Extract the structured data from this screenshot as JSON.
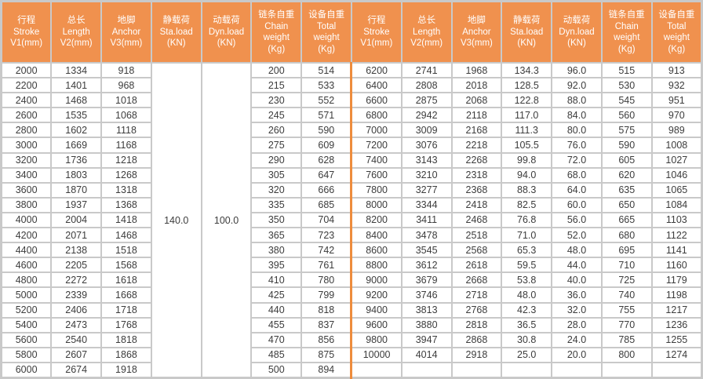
{
  "table": {
    "columns": [
      {
        "label": "行程\nStroke\nV1(mm)"
      },
      {
        "label": "总长\nLength\nV2(mm)"
      },
      {
        "label": "地脚\nAnchor\nV3(mm)"
      },
      {
        "label": "静载荷\nSta.load\n(KN)"
      },
      {
        "label": "动载荷\nDyn.load\n(KN)"
      },
      {
        "label": "链条自重\nChain\nweight\n(Kg)"
      },
      {
        "label": "设备自重\nTotal\nweight\n(Kg)"
      }
    ],
    "left_merged": {
      "sta_load": "140.0",
      "dyn_load": "100.0"
    },
    "left_rows": [
      [
        "2000",
        "1334",
        "918",
        "200",
        "514"
      ],
      [
        "2200",
        "1401",
        "968",
        "215",
        "533"
      ],
      [
        "2400",
        "1468",
        "1018",
        "230",
        "552"
      ],
      [
        "2600",
        "1535",
        "1068",
        "245",
        "571"
      ],
      [
        "2800",
        "1602",
        "1118",
        "260",
        "590"
      ],
      [
        "3000",
        "1669",
        "1168",
        "275",
        "609"
      ],
      [
        "3200",
        "1736",
        "1218",
        "290",
        "628"
      ],
      [
        "3400",
        "1803",
        "1268",
        "305",
        "647"
      ],
      [
        "3600",
        "1870",
        "1318",
        "320",
        "666"
      ],
      [
        "3800",
        "1937",
        "1368",
        "335",
        "685"
      ],
      [
        "4000",
        "2004",
        "1418",
        "350",
        "704"
      ],
      [
        "4200",
        "2071",
        "1468",
        "365",
        "723"
      ],
      [
        "4400",
        "2138",
        "1518",
        "380",
        "742"
      ],
      [
        "4600",
        "2205",
        "1568",
        "395",
        "761"
      ],
      [
        "4800",
        "2272",
        "1618",
        "410",
        "780"
      ],
      [
        "5000",
        "2339",
        "1668",
        "425",
        "799"
      ],
      [
        "5200",
        "2406",
        "1718",
        "440",
        "818"
      ],
      [
        "5400",
        "2473",
        "1768",
        "455",
        "837"
      ],
      [
        "5600",
        "2540",
        "1818",
        "470",
        "856"
      ],
      [
        "5800",
        "2607",
        "1868",
        "485",
        "875"
      ],
      [
        "6000",
        "2674",
        "1918",
        "500",
        "894"
      ]
    ],
    "right_rows": [
      [
        "6200",
        "2741",
        "1968",
        "134.3",
        "96.0",
        "515",
        "913"
      ],
      [
        "6400",
        "2808",
        "2018",
        "128.5",
        "92.0",
        "530",
        "932"
      ],
      [
        "6600",
        "2875",
        "2068",
        "122.8",
        "88.0",
        "545",
        "951"
      ],
      [
        "6800",
        "2942",
        "2118",
        "117.0",
        "84.0",
        "560",
        "970"
      ],
      [
        "7000",
        "3009",
        "2168",
        "111.3",
        "80.0",
        "575",
        "989"
      ],
      [
        "7200",
        "3076",
        "2218",
        "105.5",
        "76.0",
        "590",
        "1008"
      ],
      [
        "7400",
        "3143",
        "2268",
        "99.8",
        "72.0",
        "605",
        "1027"
      ],
      [
        "7600",
        "3210",
        "2318",
        "94.0",
        "68.0",
        "620",
        "1046"
      ],
      [
        "7800",
        "3277",
        "2368",
        "88.3",
        "64.0",
        "635",
        "1065"
      ],
      [
        "8000",
        "3344",
        "2418",
        "82.5",
        "60.0",
        "650",
        "1084"
      ],
      [
        "8200",
        "3411",
        "2468",
        "76.8",
        "56.0",
        "665",
        "1103"
      ],
      [
        "8400",
        "3478",
        "2518",
        "71.0",
        "52.0",
        "680",
        "1122"
      ],
      [
        "8600",
        "3545",
        "2568",
        "65.3",
        "48.0",
        "695",
        "1141"
      ],
      [
        "8800",
        "3612",
        "2618",
        "59.5",
        "44.0",
        "710",
        "1160"
      ],
      [
        "9000",
        "3679",
        "2668",
        "53.8",
        "40.0",
        "725",
        "1179"
      ],
      [
        "9200",
        "3746",
        "2718",
        "48.0",
        "36.0",
        "740",
        "1198"
      ],
      [
        "9400",
        "3813",
        "2768",
        "42.3",
        "32.0",
        "755",
        "1217"
      ],
      [
        "9600",
        "3880",
        "2818",
        "36.5",
        "28.0",
        "770",
        "1236"
      ],
      [
        "9800",
        "3947",
        "2868",
        "30.8",
        "24.0",
        "785",
        "1255"
      ],
      [
        "10000",
        "4014",
        "2918",
        "25.0",
        "20.0",
        "800",
        "1274"
      ],
      [
        "",
        "",
        "",
        "",
        "",
        "",
        ""
      ]
    ],
    "colors": {
      "header_bg": "#F0914E",
      "group_divider": "#EE8C3C",
      "grid": "#C9C9C9",
      "cell_text": "#3C3C3C",
      "header_text": "#FFFFFF"
    }
  }
}
